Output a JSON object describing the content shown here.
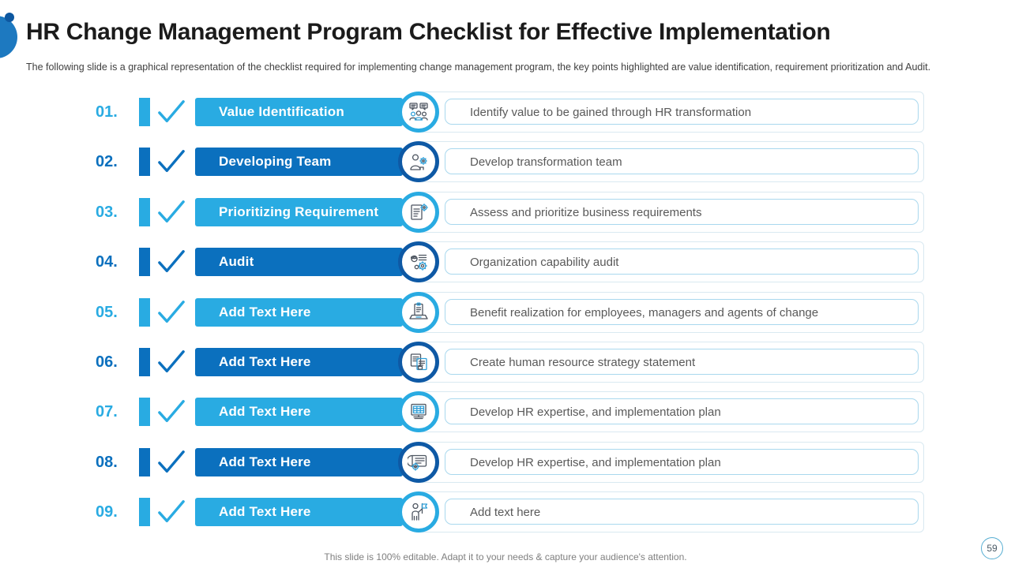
{
  "slide": {
    "title": "HR Change Management Program Checklist for Effective Implementation",
    "subtitle": "The following slide is a graphical representation of the checklist required for implementing change management program, the key points highlighted are value identification, requirement prioritization and Audit.",
    "footer": "This slide is 100% editable. Adapt it to your needs & capture your audience's attention.",
    "page_number": "59"
  },
  "colors": {
    "light_blue": "#29ABE2",
    "dark_blue": "#0B70BE",
    "dark_ring": "#0E59A5",
    "description_border": "#A9D8EE",
    "description_text": "#595959",
    "footer_text": "#7F7F7F"
  },
  "rows": [
    {
      "number": "01.",
      "label": "Value Identification",
      "description": "Identify value to be gained through HR transformation",
      "icon": "team-discussion-icon",
      "theme": "light",
      "checked": true
    },
    {
      "number": "02.",
      "label": "Developing Team",
      "description": "Develop transformation team",
      "icon": "person-gear-icon",
      "theme": "dark",
      "checked": true
    },
    {
      "number": "03.",
      "label": "Prioritizing Requirement",
      "description": "Assess and prioritize business requirements",
      "icon": "document-gear-icon",
      "theme": "light",
      "checked": true
    },
    {
      "number": "04.",
      "label": "Audit",
      "description": "Organization capability audit",
      "icon": "person-checklist-gear-icon",
      "theme": "dark",
      "checked": true
    },
    {
      "number": "05.",
      "label": "Add Text Here",
      "description": "Benefit realization for employees, managers and agents of change",
      "icon": "laptop-checklist-icon",
      "theme": "light",
      "checked": true
    },
    {
      "number": "06.",
      "label": "Add Text Here",
      "description": "Create human resource strategy statement",
      "icon": "strategy-documents-icon",
      "theme": "dark",
      "checked": true
    },
    {
      "number": "07.",
      "label": "Add Text Here",
      "description": "Develop HR expertise, and implementation plan",
      "icon": "monitor-grid-icon",
      "theme": "light",
      "checked": true
    },
    {
      "number": "08.",
      "label": "Add Text Here",
      "description": "Develop HR expertise, and implementation plan",
      "icon": "blueprint-gear-icon",
      "theme": "dark",
      "checked": true
    },
    {
      "number": "09.",
      "label": "Add Text Here",
      "description": "Add text here",
      "icon": "person-flag-icon",
      "theme": "light",
      "checked": true
    }
  ]
}
